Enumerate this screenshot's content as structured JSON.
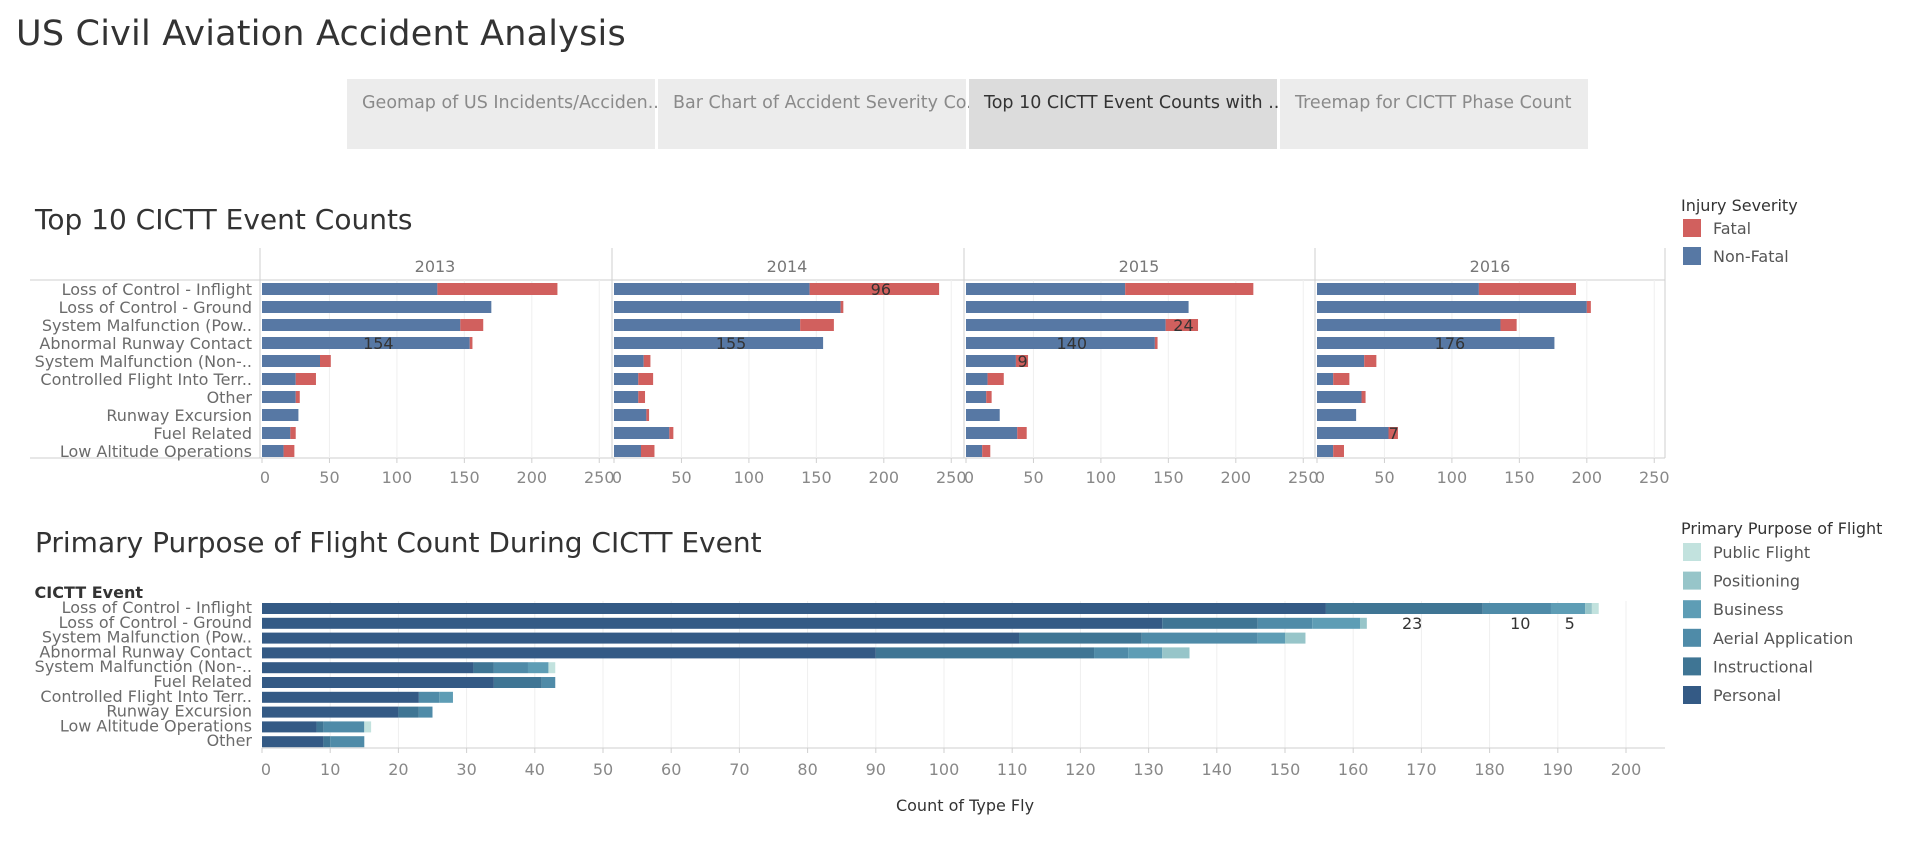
{
  "title": "US Civil Aviation Accident Analysis",
  "tabs": [
    {
      "label": "Geomap of US Incidents/Acciden..",
      "active": false
    },
    {
      "label": "Bar Chart of Accident Severity Co..",
      "active": false
    },
    {
      "label": "Top 10 CICTT Event Counts with ..",
      "active": true
    },
    {
      "label": "Treemap for CICTT Phase Count",
      "active": false
    }
  ],
  "chart_data": [
    {
      "type": "bar",
      "title": "Top 10 CICTT Event Counts",
      "orientation": "horizontal",
      "stacked": true,
      "panels": [
        "2013",
        "2014",
        "2015",
        "2016"
      ],
      "categories": [
        "Loss of Control - Inflight",
        "Loss of Control - Ground",
        "System Malfunction (Pow..",
        "Abnormal Runway Contact",
        "System Malfunction (Non-..",
        "Controlled Flight Into Terr..",
        "Other",
        "Runway Excursion",
        "Fuel Related",
        "Low Altitude Operations"
      ],
      "series": [
        {
          "name": "Non-Fatal",
          "color": "#5778a4",
          "values": {
            "2013": [
              130,
              170,
              147,
              154,
              43,
              25,
              25,
              27,
              21,
              16
            ],
            "2014": [
              145,
              168,
              138,
              155,
              22,
              18,
              18,
              24,
              41,
              20
            ],
            "2015": [
              118,
              165,
              148,
              140,
              37,
              16,
              15,
              25,
              38,
              12
            ],
            "2016": [
              120,
              200,
              136,
              176,
              35,
              12,
              33,
              29,
              53,
              12
            ]
          }
        },
        {
          "name": "Fatal",
          "color": "#d1605e",
          "values": {
            "2013": [
              89,
              0,
              17,
              2,
              8,
              15,
              3,
              0,
              4,
              8
            ],
            "2014": [
              96,
              2,
              25,
              0,
              5,
              11,
              5,
              2,
              3,
              10
            ],
            "2015": [
              95,
              0,
              24,
              2,
              9,
              12,
              4,
              0,
              7,
              6
            ],
            "2016": [
              72,
              3,
              12,
              0,
              9,
              12,
              3,
              0,
              7,
              8
            ]
          }
        }
      ],
      "data_labels": [
        {
          "panel": "2013",
          "category": "Abnormal Runway Contact",
          "text": "154"
        },
        {
          "panel": "2014",
          "category": "Loss of Control - Inflight",
          "text": "96"
        },
        {
          "panel": "2014",
          "category": "Abnormal Runway Contact",
          "text": "155"
        },
        {
          "panel": "2015",
          "category": "System Malfunction (Pow..",
          "text": "24"
        },
        {
          "panel": "2015",
          "category": "Abnormal Runway Contact",
          "text": "140"
        },
        {
          "panel": "2015",
          "category": "System Malfunction (Non-..",
          "text": "9"
        },
        {
          "panel": "2016",
          "category": "Abnormal Runway Contact",
          "text": "176"
        },
        {
          "panel": "2016",
          "category": "Fuel Related",
          "text": "7"
        }
      ],
      "xlim": [
        0,
        255
      ],
      "xticks": [
        0,
        50,
        100,
        150,
        200,
        250
      ],
      "legend": {
        "title": "Injury Severity",
        "items": [
          "Fatal",
          "Non-Fatal"
        ],
        "placement": "right"
      },
      "grid": true
    },
    {
      "type": "bar",
      "title": "Primary Purpose of Flight Count During CICTT Event",
      "orientation": "horizontal",
      "stacked": true,
      "ylabel": "CICTT Event",
      "xlabel": "Count of Type Fly",
      "categories": [
        "Loss of Control - Inflight",
        "Loss of Control - Ground",
        "System Malfunction (Pow..",
        "Abnormal Runway Contact",
        "System Malfunction (Non-..",
        "Fuel Related",
        "Controlled Flight Into Terr..",
        "Runway Excursion",
        "Low Altitude Operations",
        "Other"
      ],
      "series": [
        {
          "name": "Personal",
          "color": "#345a85",
          "values": [
            156,
            132,
            111,
            90,
            31,
            34,
            23,
            20,
            8,
            9
          ]
        },
        {
          "name": "Instructional",
          "color": "#3f7594",
          "values": [
            23,
            14,
            18,
            32,
            3,
            7,
            0,
            3,
            1,
            1
          ]
        },
        {
          "name": "Aerial Application",
          "color": "#4f8ba8",
          "values": [
            10,
            8,
            17,
            5,
            5,
            2,
            3,
            2,
            6,
            5
          ]
        },
        {
          "name": "Business",
          "color": "#5e9db5",
          "values": [
            5,
            7,
            4,
            5,
            3,
            0,
            2,
            0,
            0,
            0
          ]
        },
        {
          "name": "Positioning",
          "color": "#97c5c9",
          "values": [
            1,
            1,
            3,
            4,
            0,
            0,
            0,
            0,
            0,
            0
          ]
        },
        {
          "name": "Public Flight",
          "color": "#c2e2de",
          "values": [
            1,
            0,
            0,
            0,
            1,
            0,
            0,
            0,
            1,
            0
          ]
        }
      ],
      "data_labels": [
        {
          "category": "Loss of Control - Inflight",
          "series": "Instructional",
          "text": "23"
        },
        {
          "category": "Loss of Control - Inflight",
          "series": "Aerial Application",
          "text": "10"
        },
        {
          "category": "Loss of Control - Inflight",
          "series": "Business",
          "text": "5"
        }
      ],
      "xlim": [
        0,
        205
      ],
      "xticks": [
        0,
        10,
        20,
        30,
        40,
        50,
        60,
        70,
        80,
        90,
        100,
        110,
        120,
        130,
        140,
        150,
        160,
        170,
        180,
        190,
        200
      ],
      "legend": {
        "title": "Primary Purpose of Flight",
        "items": [
          "Public Flight",
          "Positioning",
          "Business",
          "Aerial Application",
          "Instructional",
          "Personal"
        ],
        "placement": "right"
      },
      "grid": true
    }
  ]
}
